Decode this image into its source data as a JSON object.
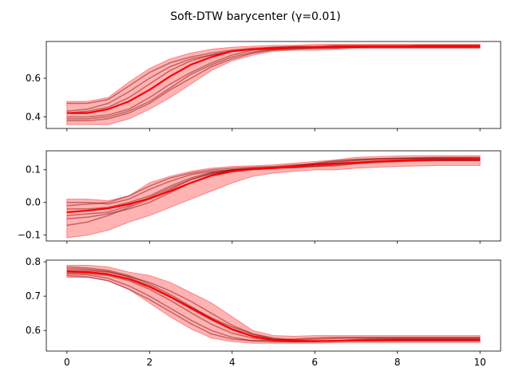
{
  "title": "Soft-DTW barycenter  (γ=0.01)",
  "chart_data": {
    "type": "line",
    "title": "Soft-DTW barycenter  (γ=0.01)",
    "grid": false,
    "colors": {
      "barycenter": "#ff0000",
      "band": "#ff8080",
      "series": "#800000"
    },
    "panels": [
      {
        "xlabel": "",
        "ylabel": "",
        "xlim": [
          -0.5,
          10.5
        ],
        "ylim": [
          0.34,
          0.79
        ],
        "yticks": [
          0.4,
          0.6
        ],
        "ytick_labels": [
          "0.4",
          "0.6"
        ],
        "xticks": [
          0,
          2,
          4,
          6,
          8,
          10
        ],
        "xticks_labeled": false,
        "x": [
          0,
          0.5,
          1,
          1.5,
          2,
          2.5,
          3,
          3.5,
          4,
          4.5,
          5,
          5.5,
          6,
          6.5,
          7,
          7.5,
          8,
          8.5,
          9,
          9.5,
          10
        ],
        "barycenter": [
          0.42,
          0.42,
          0.44,
          0.48,
          0.54,
          0.61,
          0.67,
          0.71,
          0.74,
          0.75,
          0.755,
          0.76,
          0.76,
          0.76,
          0.765,
          0.765,
          0.765,
          0.765,
          0.765,
          0.765,
          0.765
        ],
        "band_upper": [
          0.48,
          0.48,
          0.5,
          0.58,
          0.65,
          0.7,
          0.73,
          0.75,
          0.76,
          0.765,
          0.77,
          0.77,
          0.775,
          0.775,
          0.775,
          0.775,
          0.775,
          0.775,
          0.775,
          0.775,
          0.775
        ],
        "band_lower": [
          0.36,
          0.36,
          0.36,
          0.39,
          0.44,
          0.5,
          0.57,
          0.64,
          0.69,
          0.72,
          0.74,
          0.745,
          0.745,
          0.75,
          0.755,
          0.755,
          0.755,
          0.755,
          0.755,
          0.755,
          0.755
        ],
        "series": [
          [
            0.43,
            0.44,
            0.47,
            0.53,
            0.6,
            0.66,
            0.7,
            0.72,
            0.74,
            0.75,
            0.755,
            0.76,
            0.76,
            0.765,
            0.765,
            0.765,
            0.765,
            0.77,
            0.77,
            0.77,
            0.77
          ],
          [
            0.4,
            0.4,
            0.41,
            0.44,
            0.5,
            0.57,
            0.63,
            0.68,
            0.72,
            0.745,
            0.75,
            0.755,
            0.76,
            0.76,
            0.76,
            0.765,
            0.765,
            0.765,
            0.765,
            0.765,
            0.765
          ],
          [
            0.47,
            0.47,
            0.49,
            0.56,
            0.63,
            0.68,
            0.71,
            0.73,
            0.745,
            0.755,
            0.76,
            0.765,
            0.765,
            0.77,
            0.77,
            0.77,
            0.77,
            0.77,
            0.77,
            0.77,
            0.77
          ],
          [
            0.38,
            0.38,
            0.39,
            0.42,
            0.47,
            0.54,
            0.6,
            0.66,
            0.7,
            0.73,
            0.745,
            0.75,
            0.755,
            0.755,
            0.76,
            0.76,
            0.76,
            0.76,
            0.76,
            0.76,
            0.76
          ],
          [
            0.42,
            0.43,
            0.45,
            0.5,
            0.57,
            0.64,
            0.69,
            0.72,
            0.74,
            0.75,
            0.76,
            0.76,
            0.76,
            0.765,
            0.765,
            0.765,
            0.765,
            0.765,
            0.765,
            0.765,
            0.765
          ],
          [
            0.39,
            0.39,
            0.4,
            0.43,
            0.48,
            0.55,
            0.62,
            0.67,
            0.71,
            0.735,
            0.75,
            0.755,
            0.755,
            0.76,
            0.76,
            0.76,
            0.76,
            0.76,
            0.76,
            0.76,
            0.76
          ]
        ]
      },
      {
        "xlabel": "",
        "ylabel": "",
        "xlim": [
          -0.5,
          10.5
        ],
        "ylim": [
          -0.118,
          0.158
        ],
        "yticks": [
          -0.1,
          0.0,
          0.1
        ],
        "ytick_labels": [
          "−0.1",
          "0.0",
          "0.1"
        ],
        "xticks": [
          0,
          2,
          4,
          6,
          8,
          10
        ],
        "xticks_labeled": false,
        "x": [
          0,
          0.5,
          1,
          1.5,
          2,
          2.5,
          3,
          3.5,
          4,
          4.5,
          5,
          5.5,
          6,
          6.5,
          7,
          7.5,
          8,
          8.5,
          9,
          9.5,
          10
        ],
        "barycenter": [
          -0.03,
          -0.025,
          -0.018,
          -0.005,
          0.012,
          0.035,
          0.06,
          0.082,
          0.095,
          0.102,
          0.105,
          0.11,
          0.115,
          0.118,
          0.122,
          0.126,
          0.128,
          0.13,
          0.131,
          0.132,
          0.132
        ],
        "band_upper": [
          0.01,
          0.01,
          0.005,
          0.02,
          0.06,
          0.08,
          0.095,
          0.105,
          0.11,
          0.112,
          0.115,
          0.12,
          0.125,
          0.13,
          0.138,
          0.14,
          0.142,
          0.143,
          0.143,
          0.143,
          0.143
        ],
        "band_lower": [
          -0.108,
          -0.1,
          -0.085,
          -0.06,
          -0.04,
          -0.015,
          0.01,
          0.035,
          0.06,
          0.08,
          0.09,
          0.095,
          0.1,
          0.1,
          0.105,
          0.108,
          0.11,
          0.112,
          0.113,
          0.113,
          0.113
        ],
        "series": [
          [
            -0.01,
            -0.005,
            0.0,
            0.02,
            0.05,
            0.075,
            0.09,
            0.1,
            0.105,
            0.108,
            0.11,
            0.115,
            0.118,
            0.125,
            0.13,
            0.133,
            0.135,
            0.137,
            0.138,
            0.138,
            0.138
          ],
          [
            -0.05,
            -0.045,
            -0.035,
            -0.02,
            0.0,
            0.03,
            0.06,
            0.085,
            0.1,
            0.105,
            0.108,
            0.112,
            0.12,
            0.128,
            0.132,
            0.134,
            0.135,
            0.135,
            0.135,
            0.135,
            0.135
          ],
          [
            0.0,
            0.0,
            -0.005,
            0.01,
            0.04,
            0.065,
            0.085,
            0.095,
            0.1,
            0.103,
            0.107,
            0.108,
            0.11,
            0.112,
            0.118,
            0.122,
            0.125,
            0.127,
            0.128,
            0.128,
            0.128
          ],
          [
            -0.07,
            -0.06,
            -0.04,
            -0.015,
            0.01,
            0.04,
            0.07,
            0.09,
            0.098,
            0.102,
            0.105,
            0.112,
            0.118,
            0.12,
            0.122,
            0.126,
            0.13,
            0.132,
            0.133,
            0.133,
            0.133
          ],
          [
            -0.02,
            -0.02,
            -0.015,
            0.0,
            0.02,
            0.05,
            0.075,
            0.092,
            0.1,
            0.104,
            0.106,
            0.108,
            0.115,
            0.122,
            0.128,
            0.132,
            0.134,
            0.135,
            0.136,
            0.136,
            0.136
          ],
          [
            -0.04,
            -0.035,
            -0.03,
            -0.01,
            0.015,
            0.045,
            0.07,
            0.088,
            0.096,
            0.1,
            0.104,
            0.106,
            0.11,
            0.115,
            0.12,
            0.124,
            0.126,
            0.128,
            0.128,
            0.128,
            0.128
          ]
        ]
      },
      {
        "xlabel": "",
        "ylabel": "",
        "xlim": [
          -0.5,
          10.5
        ],
        "ylim": [
          0.54,
          0.805
        ],
        "yticks": [
          0.6,
          0.7,
          0.8
        ],
        "ytick_labels": [
          "0.6",
          "0.7",
          "0.8"
        ],
        "xticks": [
          0,
          2,
          4,
          6,
          8,
          10
        ],
        "xtick_labels": [
          "0",
          "2",
          "4",
          "6",
          "8",
          "10"
        ],
        "xticks_labeled": true,
        "x": [
          0,
          0.5,
          1,
          1.5,
          2,
          2.5,
          3,
          3.5,
          4,
          4.5,
          5,
          5.5,
          6,
          6.5,
          7,
          7.5,
          8,
          8.5,
          9,
          9.5,
          10
        ],
        "barycenter": [
          0.772,
          0.77,
          0.764,
          0.75,
          0.727,
          0.698,
          0.665,
          0.632,
          0.603,
          0.583,
          0.572,
          0.569,
          0.569,
          0.57,
          0.571,
          0.572,
          0.573,
          0.573,
          0.573,
          0.573,
          0.573
        ],
        "band_upper": [
          0.79,
          0.79,
          0.785,
          0.77,
          0.76,
          0.74,
          0.71,
          0.68,
          0.64,
          0.6,
          0.585,
          0.583,
          0.585,
          0.585,
          0.585,
          0.585,
          0.585,
          0.585,
          0.585,
          0.585,
          0.585
        ],
        "band_lower": [
          0.755,
          0.755,
          0.745,
          0.72,
          0.68,
          0.64,
          0.605,
          0.578,
          0.568,
          0.563,
          0.563,
          0.563,
          0.563,
          0.565,
          0.565,
          0.565,
          0.565,
          0.565,
          0.565,
          0.565,
          0.565
        ],
        "series": [
          [
            0.785,
            0.782,
            0.775,
            0.76,
            0.735,
            0.705,
            0.67,
            0.635,
            0.605,
            0.585,
            0.575,
            0.573,
            0.575,
            0.577,
            0.578,
            0.578,
            0.578,
            0.578,
            0.578,
            0.578,
            0.578
          ],
          [
            0.765,
            0.762,
            0.752,
            0.73,
            0.7,
            0.665,
            0.63,
            0.6,
            0.58,
            0.57,
            0.567,
            0.567,
            0.568,
            0.57,
            0.571,
            0.572,
            0.572,
            0.572,
            0.572,
            0.572,
            0.572
          ],
          [
            0.775,
            0.774,
            0.77,
            0.758,
            0.74,
            0.715,
            0.685,
            0.65,
            0.615,
            0.59,
            0.575,
            0.57,
            0.568,
            0.57,
            0.574,
            0.576,
            0.576,
            0.576,
            0.576,
            0.576,
            0.576
          ],
          [
            0.76,
            0.756,
            0.745,
            0.72,
            0.69,
            0.655,
            0.62,
            0.59,
            0.575,
            0.57,
            0.572,
            0.575,
            0.578,
            0.58,
            0.58,
            0.58,
            0.58,
            0.58,
            0.58,
            0.58,
            0.58
          ],
          [
            0.78,
            0.778,
            0.772,
            0.755,
            0.73,
            0.7,
            0.668,
            0.637,
            0.61,
            0.59,
            0.578,
            0.572,
            0.57,
            0.57,
            0.57,
            0.57,
            0.57,
            0.57,
            0.57,
            0.57,
            0.57
          ],
          [
            0.768,
            0.766,
            0.76,
            0.745,
            0.72,
            0.688,
            0.652,
            0.618,
            0.592,
            0.578,
            0.57,
            0.568,
            0.568,
            0.569,
            0.57,
            0.57,
            0.57,
            0.57,
            0.57,
            0.57,
            0.57
          ]
        ]
      }
    ]
  }
}
